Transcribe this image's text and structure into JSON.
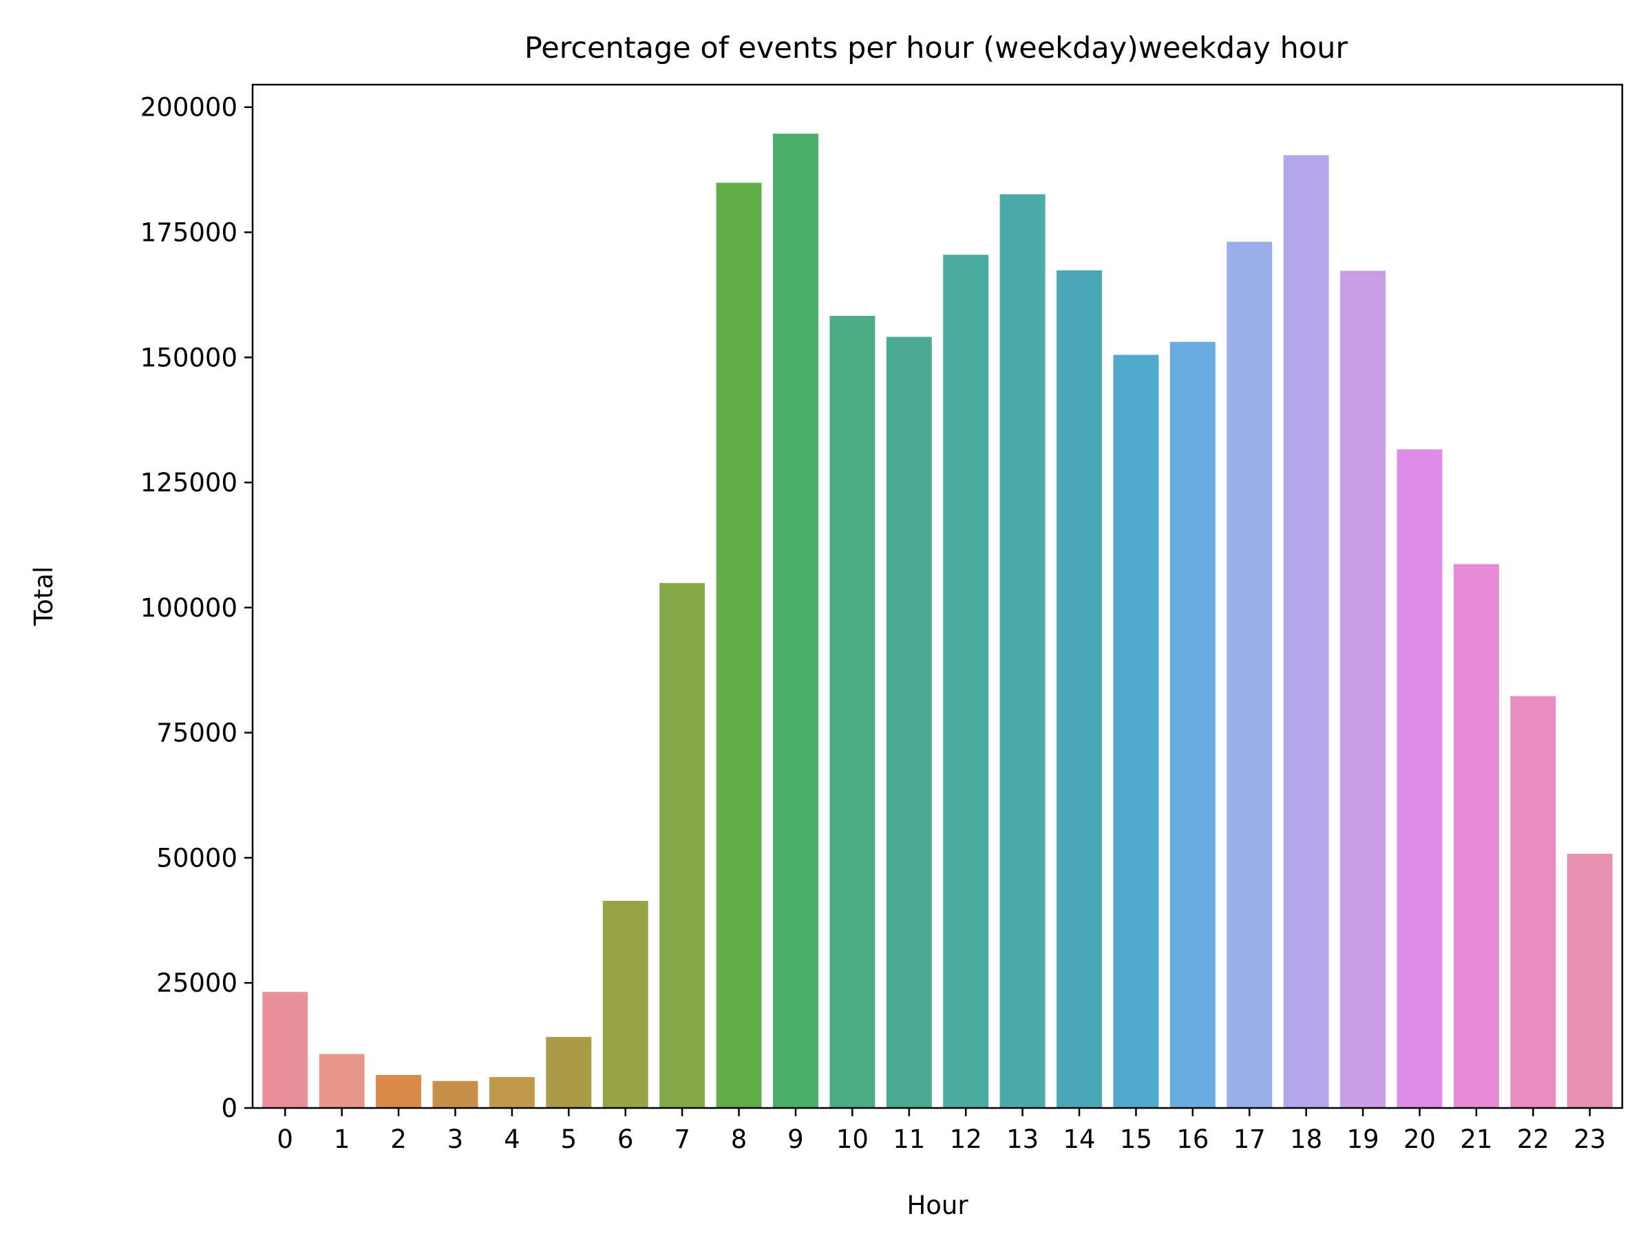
{
  "chart_data": {
    "type": "bar",
    "title": "Percentage of events per hour (weekday)weekday hour",
    "xlabel": "Hour",
    "ylabel": "Total",
    "ylim": [
      0,
      204500
    ],
    "yticks": [
      0,
      25000,
      50000,
      75000,
      100000,
      125000,
      150000,
      175000,
      200000
    ],
    "grid": false,
    "categories": [
      "0",
      "1",
      "2",
      "3",
      "4",
      "5",
      "6",
      "7",
      "8",
      "9",
      "10",
      "11",
      "12",
      "13",
      "14",
      "15",
      "16",
      "17",
      "18",
      "19",
      "20",
      "21",
      "22",
      "23"
    ],
    "values": [
      23200,
      10800,
      6600,
      5400,
      6200,
      14200,
      41400,
      104900,
      184900,
      194700,
      158300,
      154100,
      170500,
      182600,
      167400,
      150500,
      153100,
      173100,
      190400,
      167300,
      131600,
      108700,
      82300,
      50800
    ],
    "colors": [
      "#e8919c",
      "#e6978a",
      "#dc8a4c",
      "#c98f4d",
      "#bf9b4b",
      "#aa9a47",
      "#98a347",
      "#84a747",
      "#62ad48",
      "#4bad6a",
      "#4dad84",
      "#4cac92",
      "#4aac9f",
      "#4aaaaa",
      "#4aa8b8",
      "#50a9cc",
      "#69ade0",
      "#9aaee7",
      "#b5a5e9",
      "#c99ce8",
      "#df8ce8",
      "#e68ad6",
      "#e78dc3",
      "#e791b0"
    ]
  }
}
